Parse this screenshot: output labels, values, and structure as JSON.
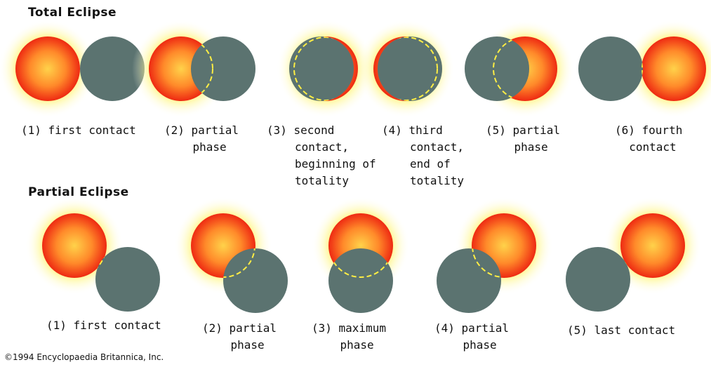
{
  "total": {
    "title": "Total Eclipse",
    "stages": [
      {
        "lines": [
          "(1) first contact"
        ]
      },
      {
        "lines": [
          "(2) partial",
          "phase"
        ]
      },
      {
        "lines": [
          "(3) second",
          "contact,",
          "beginning of",
          "totality"
        ]
      },
      {
        "lines": [
          "(4) third",
          "contact,",
          "end of",
          "totality"
        ]
      },
      {
        "lines": [
          "(5) partial",
          "phase"
        ]
      },
      {
        "lines": [
          "(6) fourth",
          "contact"
        ]
      }
    ]
  },
  "partial": {
    "title": "Partial Eclipse",
    "stages": [
      {
        "lines": [
          "(1) first contact"
        ]
      },
      {
        "lines": [
          "(2) partial",
          "phase"
        ]
      },
      {
        "lines": [
          "(3) maximum",
          "phase"
        ]
      },
      {
        "lines": [
          "(4) partial",
          "phase"
        ]
      },
      {
        "lines": [
          "(5) last contact"
        ]
      }
    ]
  },
  "copyright": "©1994 Encyclopaedia Britannica, Inc.",
  "colors": {
    "moon": "#5b7370",
    "sun_center": "#ffd24a",
    "sun_edge": "#ee2a12",
    "corona": "#ffee00",
    "outline": "#ffee44"
  }
}
